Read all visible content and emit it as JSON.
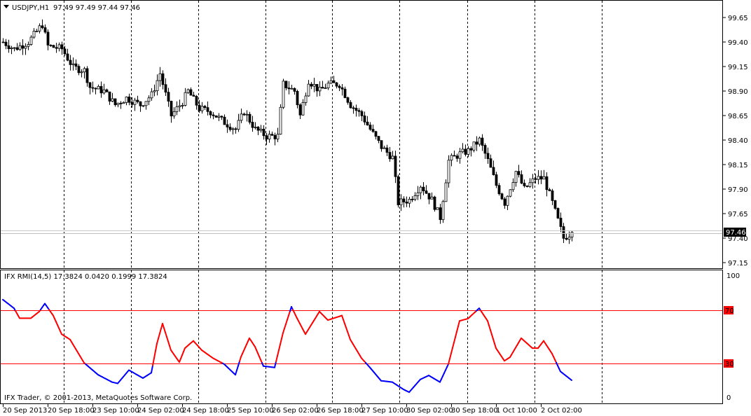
{
  "header": {
    "symbol": "USDJPY,H1",
    "ohlc": "97.49 97.49 97.44 97.46"
  },
  "indicator": {
    "label": "IFX RMI(14,5) 17.3824 0.0420 0.1999 17.3824"
  },
  "copyright": "IFX Trader, © 2001-2013, MetaQuotes Software Corp.",
  "colors": {
    "up_line": "#ff0000",
    "extreme_line": "#0000ff",
    "level_line": "#ff0000",
    "ask_line": "#ff3300",
    "grid": "#000000"
  },
  "chart_data": [
    {
      "type": "candlestick",
      "title": "USDJPY,H1",
      "y_ticks": [
        "99.65",
        "99.40",
        "99.15",
        "98.90",
        "98.65",
        "98.40",
        "98.15",
        "97.90",
        "97.65",
        "97.40",
        "97.15"
      ],
      "ylim": [
        97.1,
        99.82
      ],
      "current_price": "97.46",
      "x_ticks": [
        "20 Sep 2013",
        "20 Sep 18:00",
        "23 Sep 10:00",
        "24 Sep 02:00",
        "24 Sep 18:00",
        "25 Sep 10:00",
        "26 Sep 02:00",
        "26 Sep 18:00",
        "27 Sep 10:00",
        "30 Sep 02:00",
        "30 Sep 18:00",
        "1 Oct 10:00",
        "2 Oct 02:00"
      ],
      "bars_per_tick": 16,
      "approx_close_by_bar": [
        [
          0,
          99.4
        ],
        [
          4,
          99.33
        ],
        [
          9,
          99.4
        ],
        [
          14,
          99.58
        ],
        [
          16,
          99.36
        ],
        [
          21,
          99.33
        ],
        [
          25,
          99.14
        ],
        [
          29,
          99.11
        ],
        [
          31,
          98.94
        ],
        [
          36,
          98.9
        ],
        [
          40,
          98.76
        ],
        [
          44,
          98.83
        ],
        [
          49,
          98.76
        ],
        [
          53,
          98.86
        ],
        [
          56,
          99.08
        ],
        [
          60,
          98.65
        ],
        [
          64,
          98.79
        ],
        [
          66,
          98.9
        ],
        [
          70,
          98.72
        ],
        [
          74,
          98.69
        ],
        [
          79,
          98.58
        ],
        [
          83,
          98.51
        ],
        [
          86,
          98.69
        ],
        [
          90,
          98.51
        ],
        [
          94,
          98.44
        ],
        [
          98,
          98.44
        ],
        [
          100,
          98.97
        ],
        [
          104,
          98.9
        ],
        [
          106,
          98.65
        ],
        [
          109,
          99.01
        ],
        [
          113,
          98.9
        ],
        [
          116,
          98.97
        ],
        [
          120,
          98.97
        ],
        [
          124,
          98.76
        ],
        [
          128,
          98.65
        ],
        [
          131,
          98.51
        ],
        [
          135,
          98.33
        ],
        [
          139,
          98.22
        ],
        [
          141,
          97.76
        ],
        [
          145,
          97.79
        ],
        [
          149,
          97.94
        ],
        [
          153,
          97.79
        ],
        [
          156,
          97.61
        ],
        [
          159,
          98.19
        ],
        [
          163,
          98.26
        ],
        [
          166,
          98.29
        ],
        [
          170,
          98.4
        ],
        [
          173,
          98.19
        ],
        [
          176,
          97.94
        ],
        [
          179,
          97.76
        ],
        [
          183,
          98.08
        ],
        [
          186,
          97.9
        ],
        [
          190,
          98.01
        ],
        [
          193,
          98.01
        ],
        [
          196,
          97.76
        ],
        [
          200,
          97.4
        ],
        [
          203,
          97.46
        ]
      ]
    },
    {
      "type": "line",
      "title": "IFX RMI(14,5)",
      "y_ticks": [
        "100",
        "70",
        "30",
        "0"
      ],
      "ylim": [
        0,
        100
      ],
      "levels": [
        70,
        30
      ],
      "approx_values_by_bar": [
        [
          0,
          78
        ],
        [
          4,
          71.5
        ],
        [
          6,
          64
        ],
        [
          10,
          64
        ],
        [
          13,
          69
        ],
        [
          15,
          75
        ],
        [
          18,
          66
        ],
        [
          21,
          52
        ],
        [
          24,
          48
        ],
        [
          29,
          30.5
        ],
        [
          34,
          21.5
        ],
        [
          39,
          16
        ],
        [
          41,
          15
        ],
        [
          45,
          25
        ],
        [
          50,
          19
        ],
        [
          53,
          23
        ],
        [
          55,
          45
        ],
        [
          57,
          60
        ],
        [
          60,
          40
        ],
        [
          63,
          31
        ],
        [
          65,
          41.5
        ],
        [
          68,
          47
        ],
        [
          71,
          40
        ],
        [
          75,
          34
        ],
        [
          79,
          29.5
        ],
        [
          83,
          21.5
        ],
        [
          85,
          35
        ],
        [
          88,
          49
        ],
        [
          90,
          42.6
        ],
        [
          93,
          28
        ],
        [
          97,
          27
        ],
        [
          100,
          53
        ],
        [
          103,
          72.6
        ],
        [
          105,
          64
        ],
        [
          108,
          52
        ],
        [
          113,
          69
        ],
        [
          116,
          62.6
        ],
        [
          121,
          66
        ],
        [
          124,
          48
        ],
        [
          128,
          34
        ],
        [
          131,
          27
        ],
        [
          135,
          17
        ],
        [
          139,
          16
        ],
        [
          143,
          10.5
        ],
        [
          145,
          8.4
        ],
        [
          149,
          18
        ],
        [
          152,
          21
        ],
        [
          156,
          16
        ],
        [
          159,
          29.5
        ],
        [
          163,
          62
        ],
        [
          166,
          63.7
        ],
        [
          170,
          71.5
        ],
        [
          173,
          62
        ],
        [
          176,
          41.5
        ],
        [
          179,
          32
        ],
        [
          181,
          34.7
        ],
        [
          185,
          49
        ],
        [
          189,
          41.5
        ],
        [
          191,
          41.5
        ],
        [
          193,
          47
        ],
        [
          196,
          37.4
        ],
        [
          199,
          24
        ],
        [
          203,
          17.4
        ]
      ]
    }
  ]
}
